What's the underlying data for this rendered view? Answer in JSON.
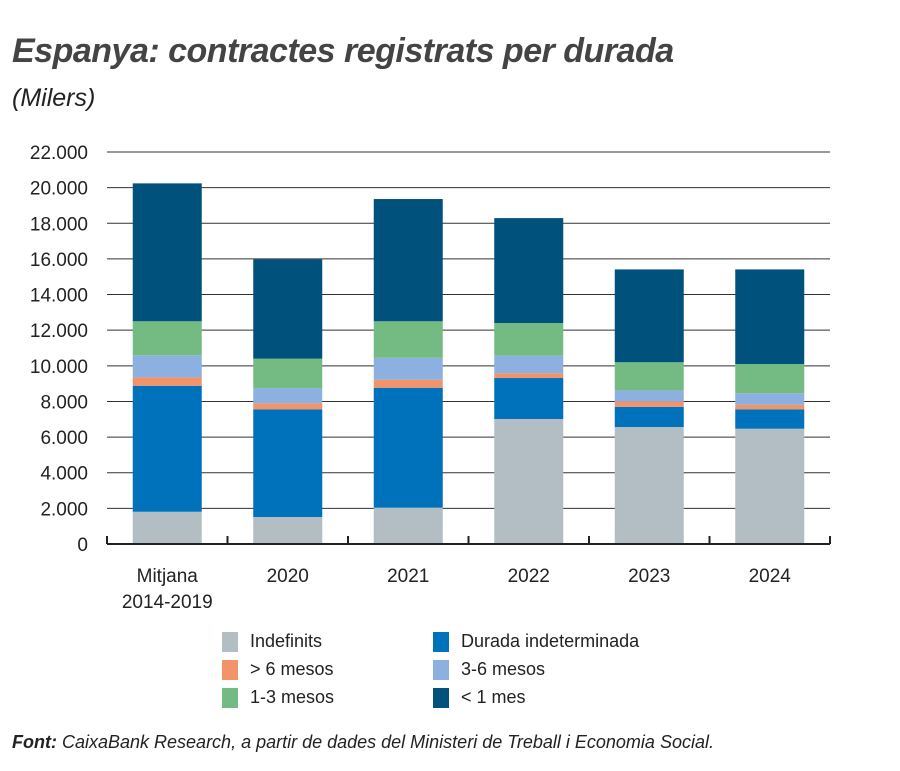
{
  "chart_data": {
    "type": "bar",
    "stacked": true,
    "title": "Espanya: contractes registrats per durada",
    "subtitle": "(Milers)",
    "categories": [
      [
        "Mitjana",
        "2014-2019"
      ],
      [
        "2020"
      ],
      [
        "2021"
      ],
      [
        "2022"
      ],
      [
        "2023"
      ],
      [
        "2024"
      ]
    ],
    "ylim": [
      0,
      22000
    ],
    "yticks": [
      0,
      2000,
      4000,
      6000,
      8000,
      10000,
      12000,
      14000,
      16000,
      18000,
      20000,
      22000
    ],
    "ytick_labels": [
      "0",
      "2.000",
      "4.000",
      "6.000",
      "8.000",
      "10.000",
      "12.000",
      "14.000",
      "16.000",
      "18.000",
      "20.000",
      "22.000"
    ],
    "grid": true,
    "legend_placement": "bottom",
    "series": [
      {
        "name": "Indefinits",
        "color": "#b3bec4",
        "values": [
          1810,
          1515,
          2040,
          7015,
          6565,
          6470
        ]
      },
      {
        "name": "Durada indeterminada",
        "color": "#0071bb",
        "values": [
          7070,
          6045,
          6730,
          2300,
          1135,
          1090
        ]
      },
      {
        "name": "> 6 mesos",
        "color": "#f3936a",
        "values": [
          470,
          340,
          450,
          265,
          300,
          260
        ]
      },
      {
        "name": "3-6 mesos",
        "color": "#8cb0df",
        "values": [
          1240,
          850,
          1230,
          990,
          620,
          640
        ]
      },
      {
        "name": "1-3 mesos",
        "color": "#74bb83",
        "values": [
          1910,
          1650,
          2050,
          1830,
          1580,
          1640
        ]
      },
      {
        "name": "< 1 mes",
        "color": "#00527d",
        "values": [
          7740,
          5580,
          6860,
          5890,
          5210,
          5310
        ]
      }
    ]
  },
  "source": {
    "label": "Font:",
    "text": " CaixaBank Research, a partir de dades del Ministeri de Treball i Economia Social."
  }
}
